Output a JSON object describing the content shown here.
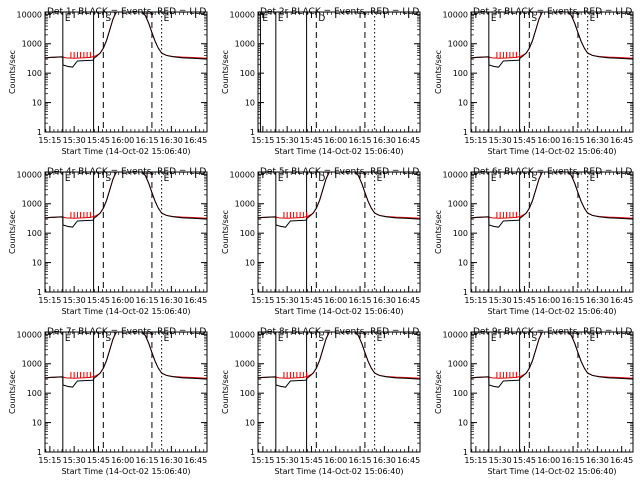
{
  "chart_data": {
    "type": "line",
    "layout_grid": "3x3",
    "x_axis": {
      "label": "Start Time (14-Oct-02 15:06:40)",
      "tick_labels": [
        "15:15",
        "15:30",
        "15:45",
        "16:00",
        "16:15",
        "16:30",
        "16:45"
      ],
      "tick_values_min": [
        0,
        15,
        30,
        45,
        60,
        75,
        90
      ],
      "range_min": [
        -3,
        97
      ]
    },
    "y_axis": {
      "label": "Counts/sec",
      "scale": "log",
      "range": [
        1,
        12000
      ],
      "tick_labels": [
        "1",
        "10",
        "100",
        "1000",
        "10000"
      ],
      "tick_values": [
        1,
        10,
        100,
        1000,
        10000
      ]
    },
    "series_colors": {
      "events": "#000000",
      "lld": "#e00000"
    },
    "title_suffix": " BLACK = Events, RED = LLD",
    "panels": [
      {
        "title": "Det 1r",
        "has_data": true,
        "markers": [
          {
            "x": 8,
            "style": "solid",
            "label": "E"
          },
          {
            "x": 27,
            "style": "solid",
            "label": ""
          },
          {
            "x": 33,
            "style": "dashed",
            "label": "S"
          },
          {
            "x": 63,
            "style": "dashed",
            "label": ""
          },
          {
            "x": 69,
            "style": "dotted",
            "label": "E"
          }
        ]
      },
      {
        "title": "Det 2r",
        "has_data": false,
        "markers": [
          {
            "x": -1.5,
            "style": "solid",
            "label": "E"
          },
          {
            "x": 8,
            "style": "solid",
            "label": "E"
          },
          {
            "x": 27,
            "style": "solid",
            "label": ""
          },
          {
            "x": 33,
            "style": "dashed",
            "label": "D"
          },
          {
            "x": 63,
            "style": "dashed",
            "label": ""
          },
          {
            "x": 69,
            "style": "dotted",
            "label": ""
          }
        ]
      },
      {
        "title": "Det 3r",
        "has_data": true,
        "markers": [
          {
            "x": 8,
            "style": "solid",
            "label": "E"
          },
          {
            "x": 27,
            "style": "solid",
            "label": ""
          },
          {
            "x": 33,
            "style": "dashed",
            "label": "S"
          },
          {
            "x": 63,
            "style": "dashed",
            "label": ""
          },
          {
            "x": 69,
            "style": "dotted",
            "label": "E"
          }
        ]
      },
      {
        "title": "Det 4r",
        "has_data": true,
        "markers": [
          {
            "x": 8,
            "style": "solid",
            "label": "E"
          },
          {
            "x": 27,
            "style": "solid",
            "label": ""
          },
          {
            "x": 33,
            "style": "dashed",
            "label": "S"
          },
          {
            "x": 63,
            "style": "dashed",
            "label": ""
          },
          {
            "x": 69,
            "style": "dotted",
            "label": "E"
          }
        ]
      },
      {
        "title": "Det 5r",
        "has_data": true,
        "markers": [
          {
            "x": 8,
            "style": "solid",
            "label": "E"
          },
          {
            "x": 27,
            "style": "solid",
            "label": ""
          },
          {
            "x": 33,
            "style": "dashed",
            "label": "D"
          },
          {
            "x": 63,
            "style": "dashed",
            "label": ""
          },
          {
            "x": 69,
            "style": "dotted",
            "label": "E"
          }
        ]
      },
      {
        "title": "Det 6r",
        "has_data": true,
        "markers": [
          {
            "x": 8,
            "style": "solid",
            "label": "E"
          },
          {
            "x": 27,
            "style": "solid",
            "label": ""
          },
          {
            "x": 33,
            "style": "dashed",
            "label": "S"
          },
          {
            "x": 63,
            "style": "dashed",
            "label": ""
          },
          {
            "x": 69,
            "style": "dotted",
            "label": "E"
          }
        ]
      },
      {
        "title": "Det 7r",
        "has_data": true,
        "markers": [
          {
            "x": 8,
            "style": "solid",
            "label": "E"
          },
          {
            "x": 27,
            "style": "solid",
            "label": ""
          },
          {
            "x": 33,
            "style": "dashed",
            "label": "S"
          },
          {
            "x": 63,
            "style": "dashed",
            "label": ""
          },
          {
            "x": 69,
            "style": "dotted",
            "label": "E"
          }
        ]
      },
      {
        "title": "Det 8r",
        "has_data": true,
        "markers": [
          {
            "x": 8,
            "style": "solid",
            "label": "E"
          },
          {
            "x": 27,
            "style": "solid",
            "label": ""
          },
          {
            "x": 33,
            "style": "dashed",
            "label": "S"
          },
          {
            "x": 63,
            "style": "dashed",
            "label": ""
          },
          {
            "x": 69,
            "style": "dotted",
            "label": "E"
          }
        ]
      },
      {
        "title": "Det 9r",
        "has_data": true,
        "markers": [
          {
            "x": 8,
            "style": "solid",
            "label": "E"
          },
          {
            "x": 27,
            "style": "solid",
            "label": ""
          },
          {
            "x": 33,
            "style": "dashed",
            "label": "S"
          },
          {
            "x": 63,
            "style": "dashed",
            "label": ""
          },
          {
            "x": 69,
            "style": "dotted",
            "label": "E"
          }
        ]
      }
    ],
    "series": [
      {
        "key": "lld",
        "x": [
          -3,
          0,
          5,
          8,
          10,
          15,
          20,
          25,
          28,
          31,
          33,
          35,
          37,
          39,
          41,
          44,
          48,
          53,
          57,
          59,
          61,
          63,
          65,
          67,
          69,
          72,
          76,
          82,
          88,
          97
        ],
        "y": [
          320,
          340,
          350,
          355,
          330,
          320,
          330,
          345,
          380,
          470,
          700,
          1300,
          3000,
          7000,
          12000,
          12000,
          12000,
          12000,
          12000,
          9000,
          5000,
          2400,
          1200,
          700,
          480,
          400,
          370,
          350,
          340,
          320
        ]
      },
      {
        "key": "events",
        "x": [
          -3,
          0,
          5,
          8,
          8.1,
          11,
          14,
          17,
          20,
          23,
          26,
          27,
          27.1,
          29,
          31,
          33,
          35,
          37,
          39,
          41,
          44,
          48,
          53,
          57,
          59,
          61,
          63,
          65,
          67,
          69,
          72,
          76,
          82,
          88,
          97
        ],
        "y": [
          330,
          345,
          355,
          360,
          190,
          170,
          160,
          260,
          265,
          270,
          275,
          280,
          320,
          380,
          480,
          700,
          1300,
          3000,
          7000,
          12000,
          12000,
          12000,
          12000,
          12000,
          9000,
          5000,
          2400,
          1200,
          700,
          480,
          400,
          360,
          330,
          320,
          300
        ]
      }
    ]
  }
}
